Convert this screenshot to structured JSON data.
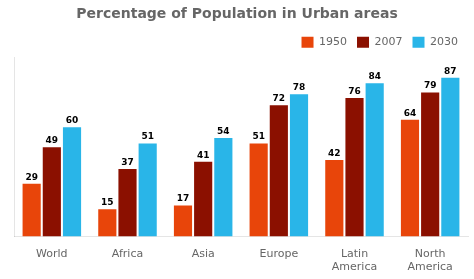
{
  "chart_data": {
    "type": "bar",
    "title": "Percentage of Population in Urban areas",
    "categories": [
      "World",
      "Africa",
      "Asia",
      "Europe",
      "Latin\nAmerica",
      "North\nAmerica"
    ],
    "series": [
      {
        "name": "1950",
        "color": "#E8450A",
        "values": [
          29,
          15,
          17,
          51,
          42,
          64
        ]
      },
      {
        "name": "2007",
        "color": "#8B1000",
        "values": [
          49,
          37,
          41,
          72,
          76,
          79
        ]
      },
      {
        "name": "2030",
        "color": "#29B5E8",
        "values": [
          60,
          51,
          54,
          78,
          84,
          87
        ]
      }
    ],
    "ylim": [
      0,
      98
    ],
    "grid": false,
    "legend": "upper right",
    "data_labels": true,
    "tick_labels": "x"
  }
}
